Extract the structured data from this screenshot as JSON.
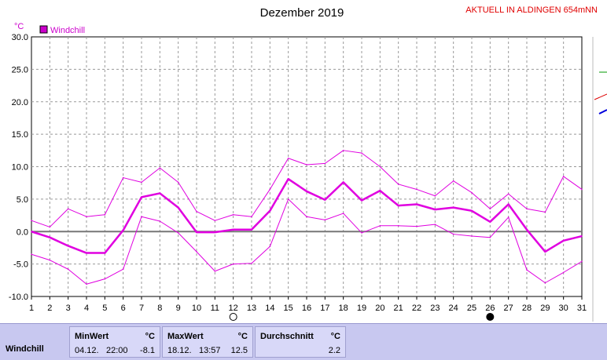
{
  "header": {
    "title": "Dezember 2019",
    "station": "AKTUELL IN ALDINGEN 654mNN"
  },
  "legend": {
    "label": "Windchill",
    "color": "#cc00cc"
  },
  "unit_label": "°C",
  "chart_data": {
    "type": "line",
    "title": "Dezember 2019",
    "xlabel": "",
    "ylabel": "°C",
    "x": [
      1,
      2,
      3,
      4,
      5,
      6,
      7,
      8,
      9,
      10,
      11,
      12,
      13,
      14,
      15,
      16,
      17,
      18,
      19,
      20,
      21,
      22,
      23,
      24,
      25,
      26,
      27,
      28,
      29,
      30,
      31
    ],
    "xlim": [
      1,
      31
    ],
    "ylim": [
      -10,
      30
    ],
    "yticks": [
      "-10.0",
      "-5.0",
      "0.0",
      "5.0",
      "10.0",
      "15.0",
      "20.0",
      "25.0",
      "30.0"
    ],
    "xticks": [
      "1",
      "2",
      "3",
      "4",
      "5",
      "6",
      "7",
      "8",
      "9",
      "10",
      "11",
      "12",
      "13",
      "14",
      "15",
      "16",
      "17",
      "18",
      "19",
      "20",
      "21",
      "22",
      "23",
      "24",
      "25",
      "26",
      "27",
      "28",
      "29",
      "30",
      "31"
    ],
    "grid": true,
    "legend_position": "top-left",
    "series": [
      {
        "name": "Windchill",
        "role": "mean",
        "color": "#e000e0",
        "values": [
          0.0,
          -0.9,
          -2.2,
          -3.3,
          -3.3,
          0.2,
          5.3,
          5.9,
          3.7,
          -0.1,
          -0.1,
          0.3,
          0.3,
          3.2,
          8.1,
          6.2,
          4.9,
          7.6,
          4.8,
          6.3,
          4.0,
          4.2,
          3.4,
          3.7,
          3.2,
          1.5,
          4.2,
          0.3,
          -3.1,
          -1.4,
          -0.7
        ]
      },
      {
        "role": "max",
        "color": "#e000e0",
        "values": [
          1.7,
          0.7,
          3.5,
          2.3,
          2.6,
          8.3,
          7.6,
          9.8,
          7.6,
          3.1,
          1.7,
          2.6,
          2.3,
          6.5,
          11.3,
          10.3,
          10.5,
          12.5,
          12.1,
          10.0,
          7.3,
          6.5,
          5.5,
          7.8,
          6.0,
          3.5,
          5.8,
          3.5,
          3.0,
          8.5,
          6.5
        ]
      },
      {
        "role": "min",
        "color": "#e000e0",
        "values": [
          -3.5,
          -4.4,
          -5.8,
          -8.1,
          -7.3,
          -5.8,
          2.3,
          1.6,
          -0.2,
          -3.1,
          -6.1,
          -5.0,
          -4.9,
          -2.3,
          5.0,
          2.3,
          1.8,
          2.8,
          -0.2,
          0.9,
          0.9,
          0.8,
          1.1,
          -0.4,
          -0.7,
          -0.9,
          2.2,
          -5.9,
          -7.9,
          -6.3,
          -4.6
        ]
      }
    ],
    "moon_phases": [
      {
        "day": 12,
        "phase": "full"
      },
      {
        "day": 26,
        "phase": "new"
      }
    ]
  },
  "stats": {
    "row_label": "Windchill",
    "min": {
      "header": "MinWert",
      "unit": "°C",
      "date": "04.12.",
      "time": "22:00",
      "value": "-8.1"
    },
    "max": {
      "header": "MaxWert",
      "unit": "°C",
      "date": "18.12.",
      "time": "13:57",
      "value": "12.5"
    },
    "avg": {
      "header": "Durchschnitt",
      "unit": "°C",
      "value": "2.2"
    }
  }
}
